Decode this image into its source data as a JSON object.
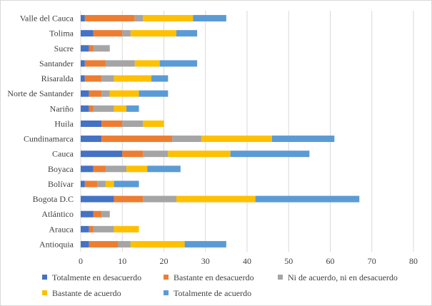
{
  "chart_data": {
    "type": "bar",
    "orientation": "horizontal",
    "stacked": true,
    "categories": [
      "Antioquia",
      "Arauca",
      "Atlántico",
      "Bogota D.C",
      "Bolívar",
      "Boyaca",
      "Cauca",
      "Cundinamarca",
      "Huila",
      "Nariño",
      "Norte de Santander",
      "Risaralda",
      "Santander",
      "Sucre",
      "Tolima",
      "Valle del Cauca"
    ],
    "series": [
      {
        "name": "Totalmente en desacuerdo",
        "color": "#4472c4",
        "values": [
          2,
          2,
          3,
          8,
          1,
          3,
          10,
          5,
          5,
          2,
          2,
          1,
          1,
          2,
          3,
          1
        ]
      },
      {
        "name": "Bastante en desacuerdo",
        "color": "#ed7d31",
        "values": [
          7,
          1,
          2,
          7,
          3,
          3,
          5,
          17,
          5,
          1,
          3,
          4,
          5,
          1,
          7,
          12
        ]
      },
      {
        "name": "Ni de acuerdo, ni en desacuerdo",
        "color": "#a5a5a5",
        "values": [
          3,
          5,
          2,
          8,
          2,
          5,
          6,
          7,
          5,
          5,
          2,
          3,
          7,
          4,
          2,
          2
        ]
      },
      {
        "name": "Bastante de acuerdo",
        "color": "#ffc000",
        "values": [
          13,
          6,
          0,
          19,
          2,
          5,
          15,
          17,
          5,
          3,
          7,
          9,
          6,
          0,
          11,
          12
        ]
      },
      {
        "name": "Totalmente de acuerdo",
        "color": "#5b9bd5",
        "values": [
          10,
          0,
          0,
          25,
          6,
          8,
          19,
          15,
          0,
          3,
          7,
          4,
          9,
          0,
          5,
          8
        ]
      }
    ],
    "xlim": [
      0,
      80
    ],
    "xticks": [
      0,
      10,
      20,
      30,
      40,
      50,
      60,
      70,
      80
    ],
    "title": "",
    "xlabel": "",
    "ylabel": "",
    "grid": "vertical",
    "legend_position": "bottom"
  }
}
